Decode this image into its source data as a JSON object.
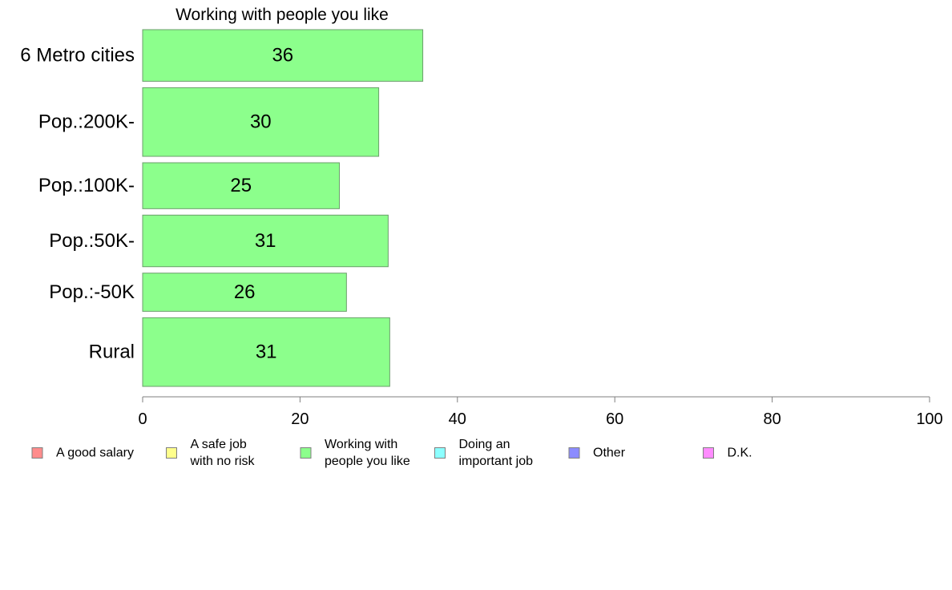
{
  "chart_data": {
    "type": "bar",
    "orientation": "horizontal",
    "title": "Working with people you like",
    "xlabel": "",
    "ylabel": "",
    "xlim": [
      0,
      100
    ],
    "x_ticks": [
      "0",
      "20",
      "40",
      "60",
      "80",
      "100"
    ],
    "grid": false,
    "categories": [
      "6 Metro cities",
      "Pop.:200K-",
      "Pop.:100K-",
      "Pop.:50K-",
      "Pop.:-50K",
      "Rural"
    ],
    "category_weight": [
      1.0,
      1.33,
      0.89,
      1.0,
      0.74,
      1.33
    ],
    "values": [
      35.6,
      30.0,
      25.0,
      31.2,
      25.9,
      31.4
    ],
    "value_labels": [
      "36",
      "30",
      "25",
      "31",
      "26",
      "31"
    ],
    "bar_color": "#8cff8c",
    "bar_stroke": "#6b9e6b",
    "legend_placement": "bottom",
    "legend": [
      {
        "lines": [
          "A good salary"
        ],
        "color": "#ff8c8c"
      },
      {
        "lines": [
          "A safe job",
          "with no risk"
        ],
        "color": "#ffff8c"
      },
      {
        "lines": [
          "Working with",
          "people you like"
        ],
        "color": "#8cff8c"
      },
      {
        "lines": [
          "Doing an",
          "important job"
        ],
        "color": "#8cffff"
      },
      {
        "lines": [
          "Other"
        ],
        "color": "#8c8cff"
      },
      {
        "lines": [
          "D.K."
        ],
        "color": "#ff8cff"
      }
    ]
  }
}
